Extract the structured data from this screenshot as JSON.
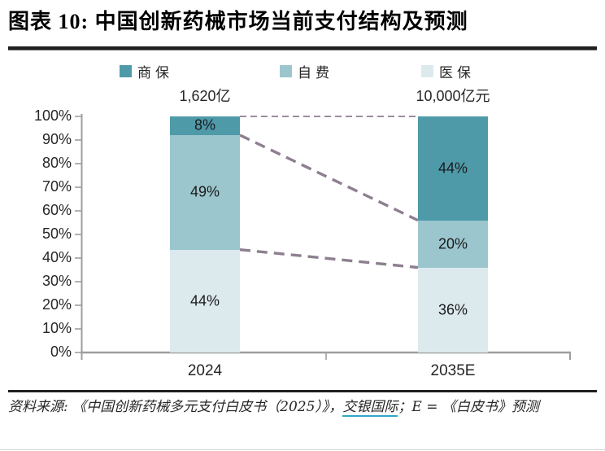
{
  "title": "图表 10: 中国创新药械市场当前支付结构及预测",
  "source": {
    "prefix": "资料来源: 《中国创新药械多元支付白皮书（2025）》，",
    "link_text": "交银国际",
    "suffix": "；E = 《白皮书》预测"
  },
  "chart_data": {
    "type": "bar",
    "subtype": "stacked-100-percent-column",
    "categories": [
      "2024",
      "2035E"
    ],
    "column_totals": [
      "1,620亿",
      "10,000亿元"
    ],
    "series": [
      {
        "name": "商保",
        "color": "#4e9aa9",
        "values": [
          8,
          44
        ]
      },
      {
        "name": "自费",
        "color": "#9cc6ce",
        "values": [
          49,
          20
        ]
      },
      {
        "name": "医保",
        "color": "#dceaee",
        "values": [
          44,
          36
        ]
      }
    ],
    "value_suffix": "%",
    "yticks": [
      "0%",
      "10%",
      "20%",
      "30%",
      "40%",
      "50%",
      "60%",
      "70%",
      "80%",
      "90%",
      "100%"
    ],
    "ylim": [
      0,
      100
    ],
    "grid": false,
    "legend_position": "top",
    "connectors": "dashed lines linking segment boundaries between columns",
    "colors": {
      "connector": "#8d7f90",
      "axis": "#9e9e9e",
      "text": "#262626",
      "link_underline": "#2fa9c6"
    }
  }
}
